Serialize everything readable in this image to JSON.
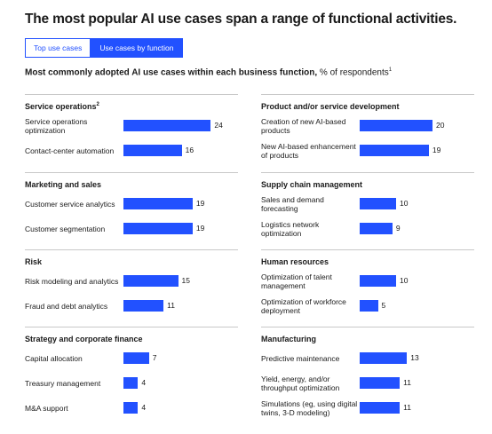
{
  "title": "The most popular AI use cases span a range of functional activities.",
  "tabs": [
    {
      "label": "Top use cases",
      "active": false
    },
    {
      "label": "Use cases by function",
      "active": true
    }
  ],
  "subtitle": {
    "bold": "Most commonly adopted AI use cases within each business function,",
    "normal": " % of respondents",
    "footnote": "1"
  },
  "colors": {
    "bar": "#2251ff",
    "rule": "#c8c8c8"
  },
  "chart_data": {
    "type": "bar",
    "unit": "% of respondents",
    "groups": [
      {
        "name": "Service operations",
        "footnote": "2",
        "items": [
          {
            "label": "Service operations optimization",
            "value": 24
          },
          {
            "label": "Contact-center automation",
            "value": 16
          }
        ]
      },
      {
        "name": "Product and/or service development",
        "footnote": "",
        "items": [
          {
            "label": "Creation of new AI-based products",
            "value": 20
          },
          {
            "label": "New AI-based enhancement of products",
            "value": 19
          }
        ]
      },
      {
        "name": "Marketing and sales",
        "footnote": "",
        "items": [
          {
            "label": "Customer service analytics",
            "value": 19
          },
          {
            "label": "Customer segmentation",
            "value": 19
          }
        ]
      },
      {
        "name": "Supply chain management",
        "footnote": "",
        "items": [
          {
            "label": "Sales and demand forecasting",
            "value": 10
          },
          {
            "label": "Logistics network optimization",
            "value": 9
          }
        ]
      },
      {
        "name": "Risk",
        "footnote": "",
        "items": [
          {
            "label": "Risk modeling and analytics",
            "value": 15
          },
          {
            "label": "Fraud and debt analytics",
            "value": 11
          }
        ]
      },
      {
        "name": "Human resources",
        "footnote": "",
        "items": [
          {
            "label": "Optimization of talent management",
            "value": 10
          },
          {
            "label": "Optimization of workforce deployment",
            "value": 5
          }
        ]
      },
      {
        "name": "Strategy and corporate finance",
        "footnote": "",
        "items": [
          {
            "label": "Capital allocation",
            "value": 7
          },
          {
            "label": "Treasury management",
            "value": 4
          },
          {
            "label": "M&A support",
            "value": 4
          }
        ]
      },
      {
        "name": "Manufacturing",
        "footnote": "",
        "items": [
          {
            "label": "Predictive maintenance",
            "value": 13
          },
          {
            "label": "Yield, energy, and/or throughput optimization",
            "value": 11
          },
          {
            "label": "Simulations (eg, using digital twins, 3-D modeling)",
            "value": 11
          }
        ]
      }
    ]
  }
}
